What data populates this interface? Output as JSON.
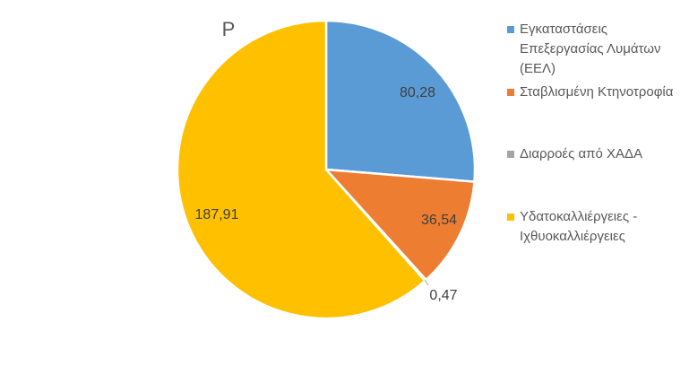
{
  "chart_data": {
    "type": "pie",
    "title": "P",
    "categories": [
      "Εγκαταστάσεις Επεξεργασίας Λυμάτων (ΕΕΛ)",
      "Σταβλισμένη Κτηνοτροφία",
      "Διαρροές από ΧΑΔΑ",
      "Υδατοκαλλιέργειες - Ιχθυοκαλλιέργειες"
    ],
    "values": [
      80.28,
      36.54,
      0.47,
      187.91
    ],
    "value_labels": [
      "80,28",
      "36,54",
      "0,47",
      "187,91"
    ],
    "colors": [
      "#5B9BD5",
      "#ED7D31",
      "#A5A5A5",
      "#FFC000"
    ],
    "legend_position": "right"
  }
}
